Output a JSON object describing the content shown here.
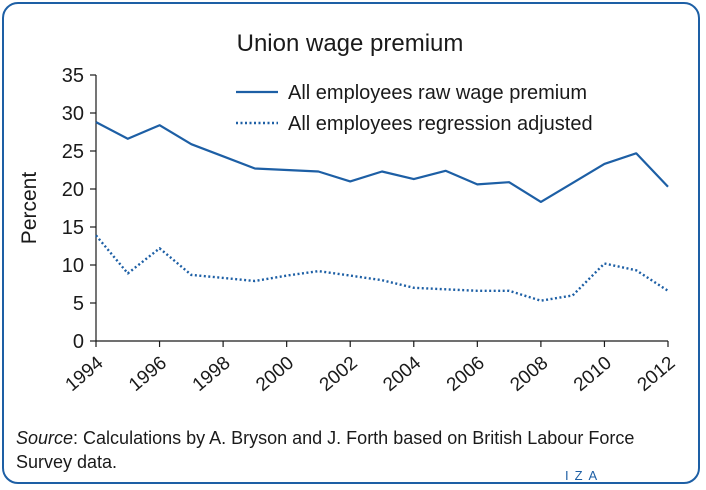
{
  "source": {
    "label": "Source",
    "text": ": Calculations by A. Bryson and J. Forth based on British Labour Force Survey data."
  },
  "logo": "IZA",
  "chart_data": {
    "type": "line",
    "title": "Union wage premium",
    "xlabel": "",
    "ylabel": "Percent",
    "xlim": [
      1994,
      2012
    ],
    "ylim": [
      0,
      35
    ],
    "x_ticks": [
      "1994",
      "1996",
      "1998",
      "2000",
      "2002",
      "2004",
      "2006",
      "2008",
      "2010",
      "2012"
    ],
    "y_ticks": [
      "0",
      "5",
      "10",
      "15",
      "20",
      "25",
      "30",
      "35"
    ],
    "x": [
      1994,
      1995,
      1996,
      1997,
      1998,
      1999,
      2000,
      2001,
      2002,
      2003,
      2004,
      2005,
      2006,
      2007,
      2008,
      2009,
      2010,
      2011,
      2012
    ],
    "series": [
      {
        "name": "All employees raw wage premium",
        "style": "solid",
        "color": "#1d5fa5",
        "values": [
          28.8,
          26.6,
          28.4,
          25.9,
          24.3,
          22.7,
          22.5,
          22.3,
          21.0,
          22.3,
          21.3,
          22.4,
          20.6,
          20.9,
          18.3,
          20.8,
          23.3,
          24.7,
          20.3
        ]
      },
      {
        "name": "All employees regression adjusted",
        "style": "dotted",
        "color": "#1d5fa5",
        "values": [
          13.9,
          8.9,
          12.2,
          8.7,
          8.3,
          7.9,
          8.6,
          9.2,
          8.6,
          8.0,
          7.0,
          6.8,
          6.6,
          6.6,
          5.3,
          6.0,
          10.2,
          9.3,
          6.6
        ]
      }
    ],
    "grid": false,
    "legend_position": "top-right"
  }
}
